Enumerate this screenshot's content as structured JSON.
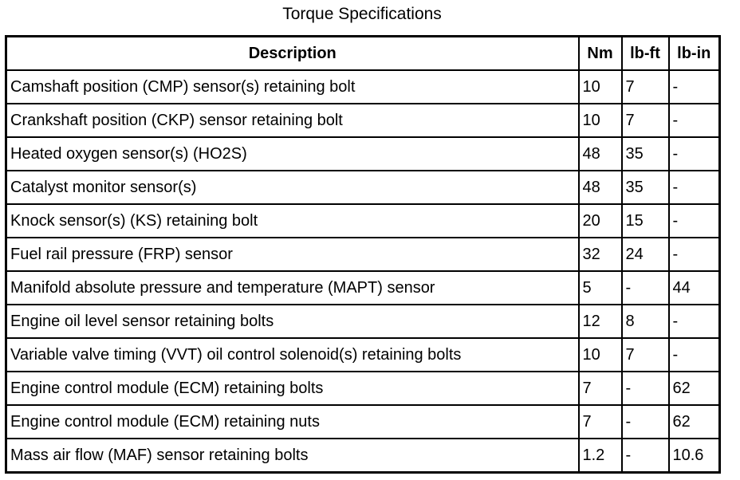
{
  "title": "Torque Specifications",
  "table": {
    "columns": {
      "description": "Description",
      "nm": "Nm",
      "lbft": "lb-ft",
      "lbin": "lb-in"
    },
    "rows": [
      {
        "desc": "Camshaft position (CMP) sensor(s) retaining bolt",
        "nm": "10",
        "lbft": "7",
        "lbin": "-"
      },
      {
        "desc": "Crankshaft position (CKP) sensor retaining bolt",
        "nm": "10",
        "lbft": "7",
        "lbin": "-"
      },
      {
        "desc": "Heated oxygen sensor(s) (HO2S)",
        "nm": "48",
        "lbft": "35",
        "lbin": "-"
      },
      {
        "desc": "Catalyst monitor sensor(s)",
        "nm": "48",
        "lbft": "35",
        "lbin": "-"
      },
      {
        "desc": "Knock sensor(s) (KS) retaining bolt",
        "nm": "20",
        "lbft": "15",
        "lbin": "-"
      },
      {
        "desc": "Fuel rail pressure (FRP) sensor",
        "nm": "32",
        "lbft": "24",
        "lbin": "-"
      },
      {
        "desc": "Manifold absolute pressure and temperature (MAPT) sensor",
        "nm": "5",
        "lbft": "-",
        "lbin": "44"
      },
      {
        "desc": "Engine oil level sensor retaining bolts",
        "nm": "12",
        "lbft": "8",
        "lbin": "-"
      },
      {
        "desc": "Variable valve timing (VVT) oil control solenoid(s) retaining bolts",
        "nm": "10",
        "lbft": "7",
        "lbin": "-"
      },
      {
        "desc": "Engine control module (ECM) retaining bolts",
        "nm": "7",
        "lbft": "-",
        "lbin": "62"
      },
      {
        "desc": "Engine control module (ECM) retaining nuts",
        "nm": "7",
        "lbft": "-",
        "lbin": "62"
      },
      {
        "desc": "Mass air flow (MAF) sensor retaining bolts",
        "nm": "1.2",
        "lbft": "-",
        "lbin": "10.6"
      }
    ]
  },
  "colors": {
    "background": "#ffffff",
    "text": "#000000",
    "border": "#000000"
  }
}
